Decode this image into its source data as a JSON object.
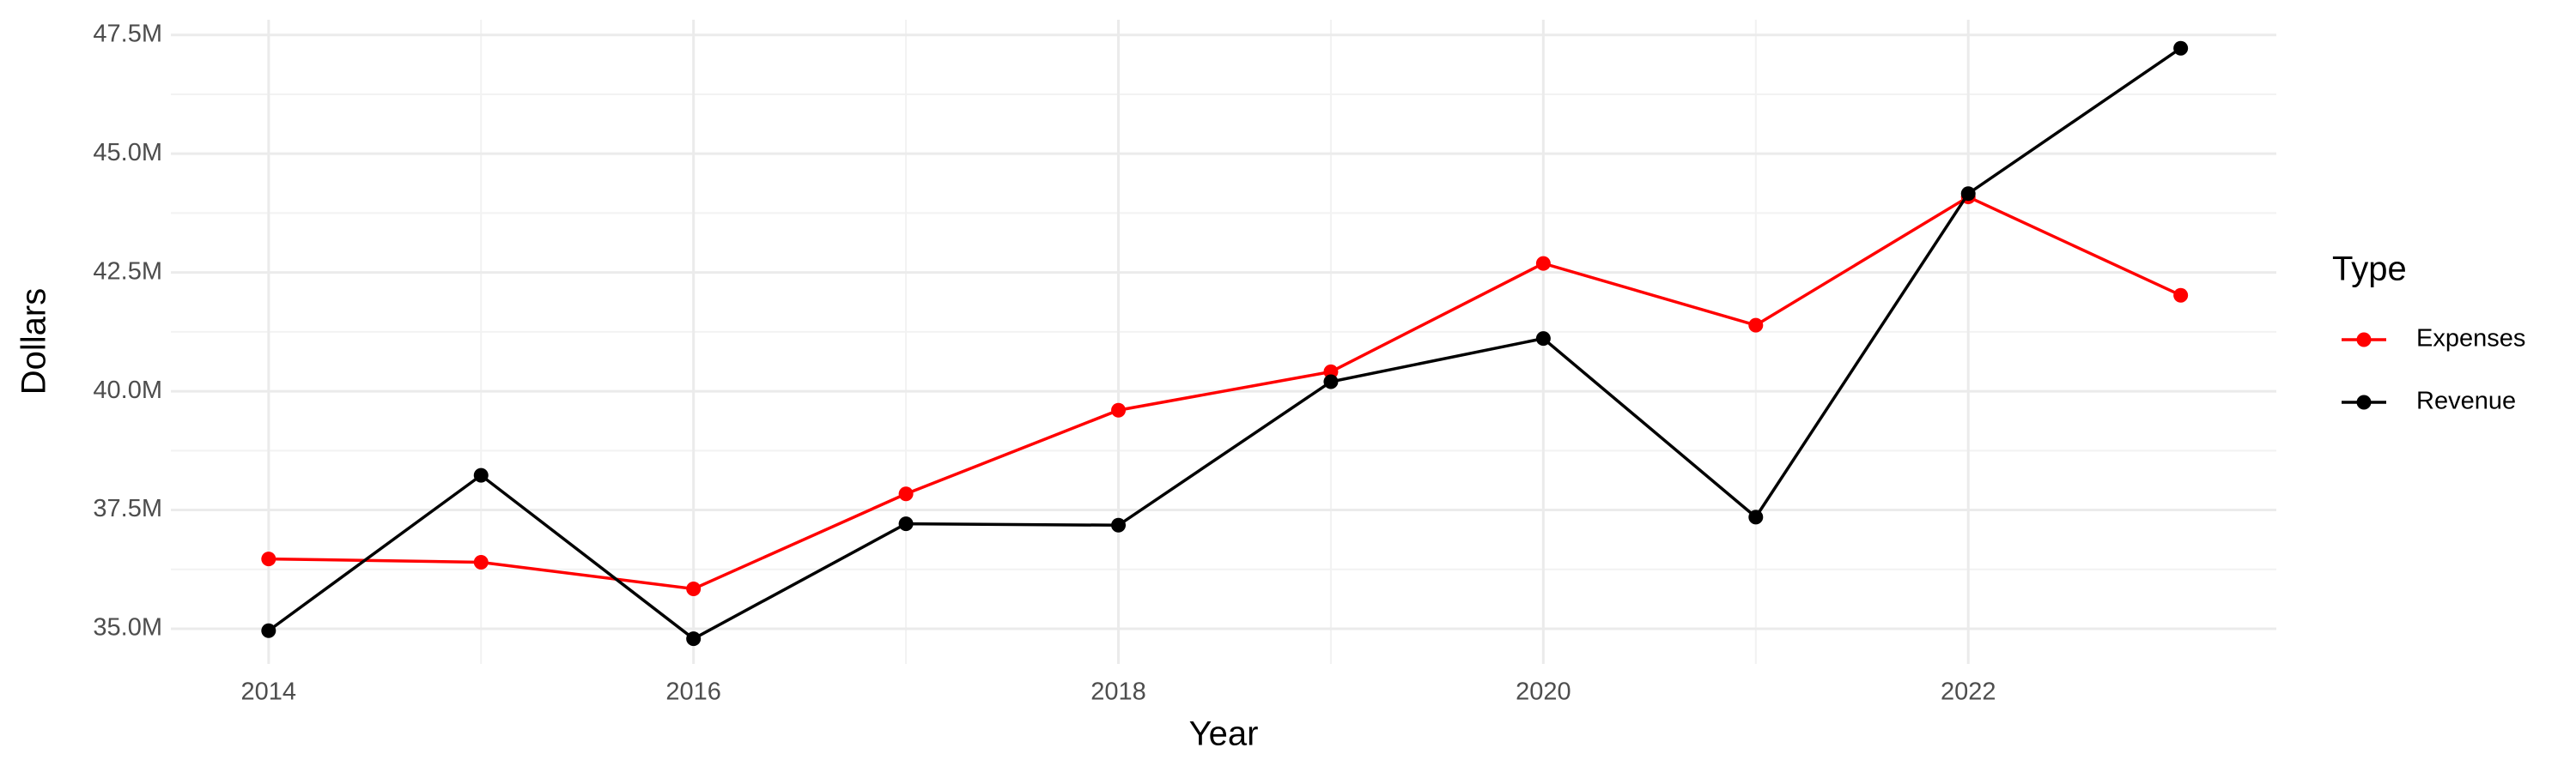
{
  "chart_data": {
    "type": "line",
    "x_label": "Year",
    "y_label": "Dollars",
    "legend_title": "Type",
    "legend_position": "right",
    "grid": true,
    "x": [
      2014,
      2015,
      2016,
      2017,
      2018,
      2019,
      2020,
      2021,
      2022,
      2023
    ],
    "series": [
      {
        "name": "Expenses",
        "color": "#ff0000",
        "values": [
          36470000,
          36400000,
          35840000,
          37840000,
          39600000,
          40410000,
          42690000,
          41390000,
          44090000,
          42020000
        ]
      },
      {
        "name": "Revenue",
        "color": "#000000",
        "values": [
          34960000,
          38230000,
          34790000,
          37210000,
          37180000,
          40200000,
          41110000,
          37350000,
          44160000,
          47220000
        ]
      }
    ],
    "xlim": [
      2013.54,
      2023.45
    ],
    "xticks": [
      2014,
      2016,
      2018,
      2020,
      2022
    ],
    "ylim": [
      34260000,
      47820000
    ],
    "yticks": [
      {
        "value": 35000000,
        "label": "35.0M"
      },
      {
        "value": 37500000,
        "label": "37.5M"
      },
      {
        "value": 40000000,
        "label": "40.0M"
      },
      {
        "value": 42500000,
        "label": "42.5M"
      },
      {
        "value": 45000000,
        "label": "45.0M"
      },
      {
        "value": 47500000,
        "label": "47.5M"
      }
    ]
  }
}
